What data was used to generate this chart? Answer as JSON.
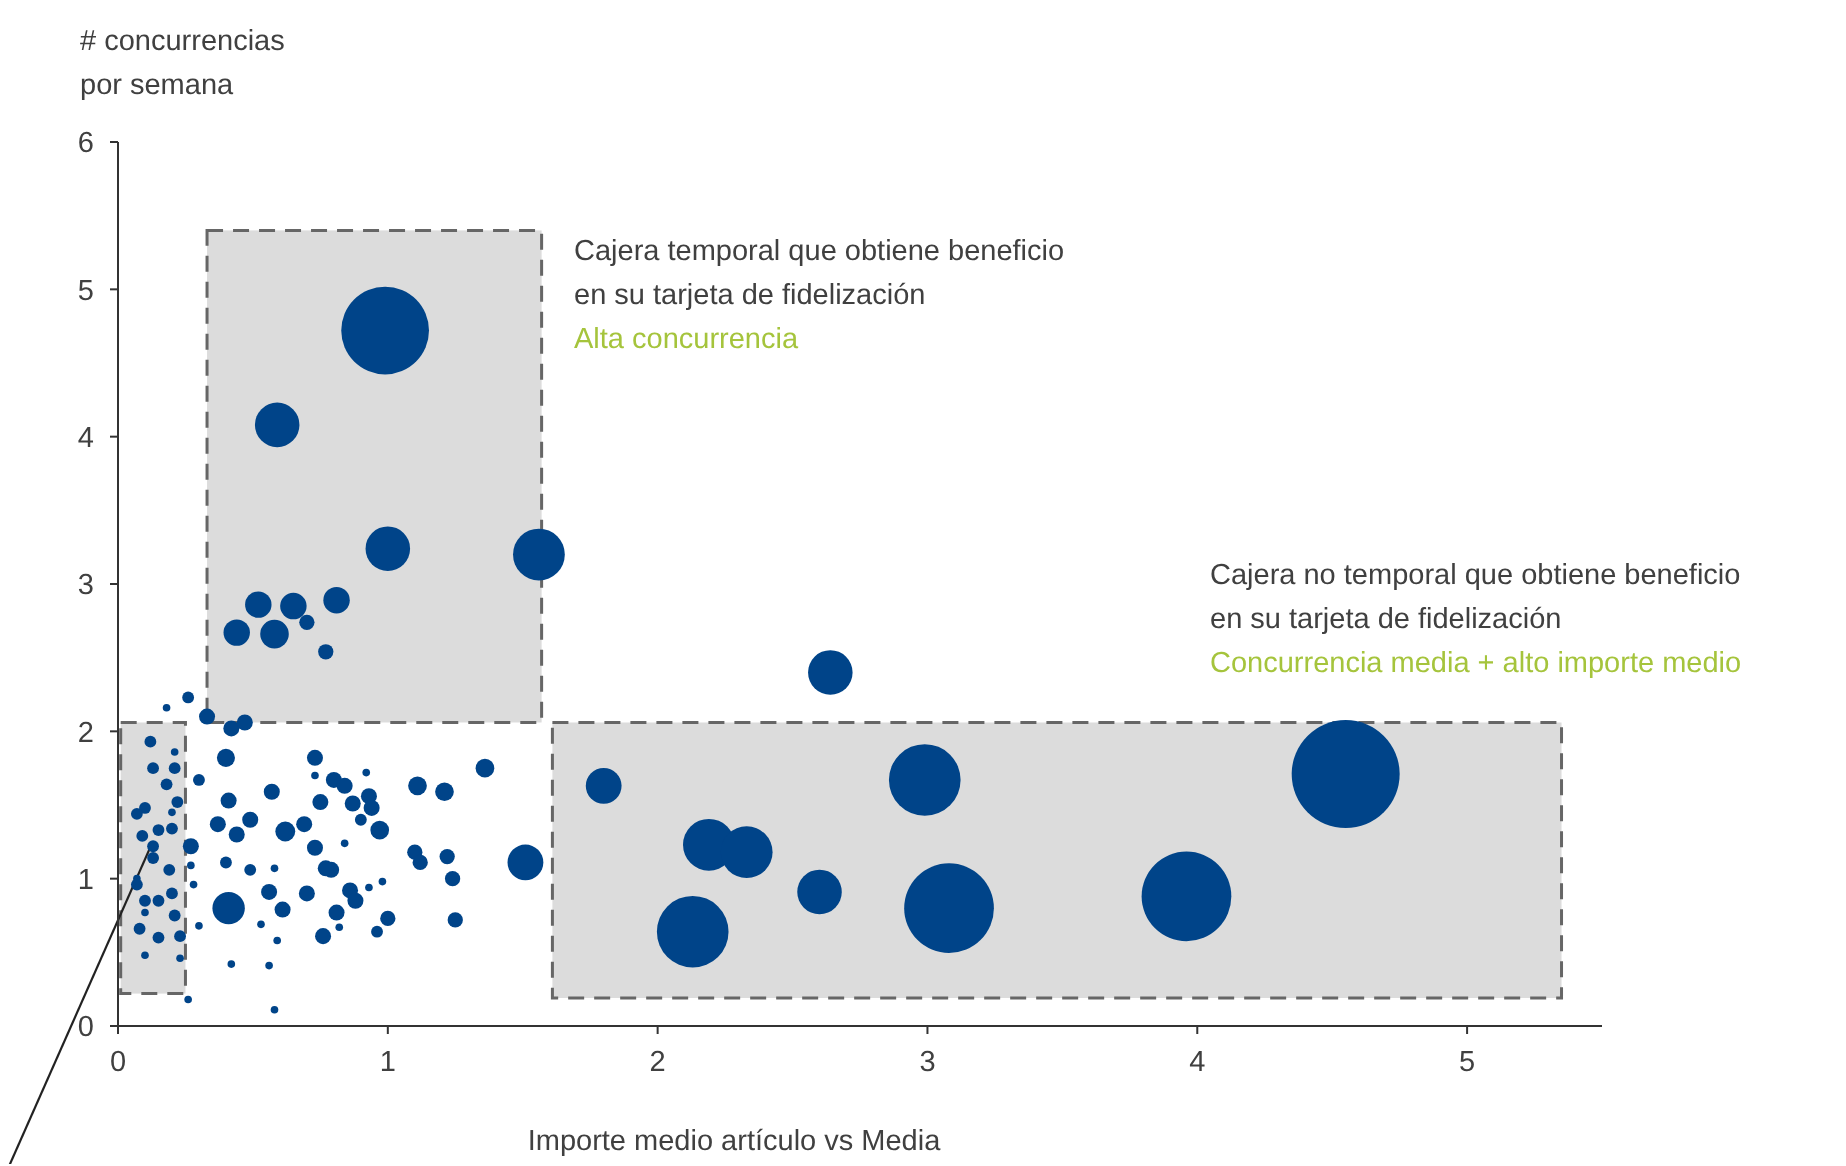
{
  "chart_data": {
    "type": "bubble",
    "xlabel": "Importe medio artículo vs Media",
    "ylabel": "# concurrencias\npor semana",
    "annotations": [
      "Cajera temporal que obtiene beneficio\nen su tarjeta de fidelización",
      "Alta concurrencia",
      "Cajera no temporal que obtiene beneficio\nen su tarjeta de fidelización",
      "Concurrencia media + alto importe medio"
    ],
    "xlim": [
      0,
      5.5
    ],
    "xticks": [
      0,
      1,
      2,
      3,
      4,
      5
    ],
    "ylim": [
      0,
      6
    ],
    "yticks": [
      0,
      1,
      2,
      3,
      4,
      5,
      6
    ],
    "grid": false,
    "legend": false,
    "marker": "circle",
    "series": [
      {
        "color": "#004489",
        "x": [
          1.8,
          2.99,
          2.19,
          2.33,
          2.13,
          2.6,
          3.08,
          3.96,
          4.55,
          2.64,
          0.99,
          0.59,
          1.0,
          1.56,
          0.52,
          0.65,
          0.81,
          0.7,
          0.44,
          0.58,
          0.77,
          1.51,
          1.36,
          1.11,
          1.21,
          1.1,
          1.12,
          1.22,
          1.24,
          1.25,
          1.0,
          0.97,
          0.93,
          0.94,
          0.87,
          0.73,
          0.8,
          0.84,
          0.92,
          0.75,
          0.9,
          0.73,
          0.84,
          0.79,
          0.86,
          0.88,
          0.81,
          0.76,
          0.7,
          0.93,
          0.98,
          0.96,
          0.82,
          0.69,
          0.73,
          0.41,
          0.26,
          0.18,
          0.33,
          0.42,
          0.47,
          0.4,
          0.12,
          0.21,
          0.13,
          0.21,
          0.18,
          0.3,
          0.57,
          0.41,
          0.22,
          0.1,
          0.07,
          0.2,
          0.49,
          0.37,
          0.15,
          0.09,
          0.2,
          0.44,
          0.62,
          0.13,
          0.27,
          0.13,
          0.27,
          0.19,
          0.07,
          0.4,
          0.49,
          0.58,
          0.77,
          0.07,
          0.2,
          0.1,
          0.15,
          0.28,
          0.56,
          0.61,
          0.1,
          0.21,
          0.3,
          0.53,
          0.08,
          0.15,
          0.23,
          0.59,
          0.1,
          0.23,
          0.42,
          0.56,
          0.26,
          0.58
        ],
        "values": [
          1.63,
          1.67,
          1.23,
          1.18,
          0.64,
          0.91,
          0.8,
          0.88,
          1.71,
          2.4,
          4.72,
          4.08,
          3.24,
          3.2,
          2.86,
          2.85,
          2.89,
          2.74,
          2.67,
          2.66,
          2.54,
          1.11,
          1.75,
          1.63,
          1.59,
          1.18,
          1.11,
          1.15,
          1.0,
          0.72,
          0.73,
          1.33,
          1.56,
          1.48,
          1.51,
          1.82,
          1.67,
          1.63,
          1.72,
          1.52,
          1.4,
          1.21,
          1.24,
          1.06,
          0.92,
          0.85,
          0.77,
          0.61,
          0.9,
          0.94,
          0.98,
          0.64,
          0.67,
          1.37,
          1.7,
          0.8,
          2.23,
          2.16,
          2.1,
          2.02,
          2.06,
          1.82,
          1.93,
          1.86,
          1.75,
          1.75,
          1.64,
          1.67,
          1.59,
          1.53,
          1.52,
          1.48,
          1.44,
          1.45,
          1.4,
          1.37,
          1.33,
          1.29,
          1.34,
          1.3,
          1.32,
          1.22,
          1.22,
          1.14,
          1.09,
          1.06,
          1.0,
          1.11,
          1.06,
          1.07,
          1.07,
          0.96,
          0.9,
          0.85,
          0.85,
          0.96,
          0.91,
          0.79,
          0.77,
          0.75,
          0.68,
          0.69,
          0.66,
          0.6,
          0.61,
          0.58,
          0.48,
          0.46,
          0.42,
          0.41,
          0.18,
          0.11
        ],
        "sizes": [
          0.11,
          0.44,
          0.23,
          0.23,
          0.44,
          0.17,
          0.69,
          0.69,
          1,
          0.17,
          0.66,
          0.17,
          0.17,
          0.23,
          0.06,
          0.06,
          0.06,
          0.02,
          0.06,
          0.07,
          0.02,
          0.11,
          0.03,
          0.03,
          0.03,
          0.02,
          0.02,
          0.02,
          0.02,
          0.02,
          0.02,
          0.03,
          0.022,
          0.022,
          0.022,
          0.022,
          0.022,
          0.022,
          0.005,
          0.022,
          0.012,
          0.022,
          0.005,
          0.022,
          0.022,
          0.022,
          0.022,
          0.022,
          0.022,
          0.005,
          0.005,
          0.012,
          0.005,
          0.022,
          0.005,
          0.09,
          0.012,
          0.005,
          0.022,
          0.022,
          0.022,
          0.028,
          0.012,
          0.005,
          0.012,
          0.012,
          0.012,
          0.012,
          0.022,
          0.022,
          0.012,
          0.012,
          0.012,
          0.005,
          0.022,
          0.022,
          0.012,
          0.012,
          0.012,
          0.022,
          0.034,
          0.012,
          0.022,
          0.012,
          0.005,
          0.012,
          0.005,
          0.012,
          0.012,
          0.005,
          0.022,
          0.012,
          0.012,
          0.012,
          0.012,
          0.005,
          0.022,
          0.022,
          0.005,
          0.012,
          0.005,
          0.005,
          0.012,
          0.012,
          0.012,
          0.005,
          0.005,
          0.005,
          0.005,
          0.005,
          0.005,
          0.005
        ]
      }
    ]
  }
}
